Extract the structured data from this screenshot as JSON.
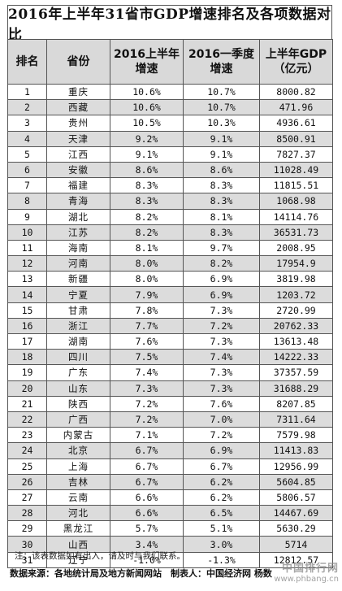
{
  "title": "2016年上半年31省市GDP增速排名及各项数据对比",
  "headers": [
    "排名",
    "省份",
    "2016上半年增速",
    "2016一季度增速",
    "上半年GDP（亿元）"
  ],
  "rows": [
    [
      "1",
      "重庆",
      "10.6%",
      "10.7%",
      "8000.82"
    ],
    [
      "2",
      "西藏",
      "10.6%",
      "10.7%",
      "471.96"
    ],
    [
      "3",
      "贵州",
      "10.5%",
      "10.3%",
      "4936.61"
    ],
    [
      "4",
      "天津",
      "9.2%",
      "9.1%",
      "8500.91"
    ],
    [
      "5",
      "江西",
      "9.1%",
      "9.1%",
      "7827.37"
    ],
    [
      "6",
      "安徽",
      "8.6%",
      "8.6%",
      "11028.49"
    ],
    [
      "7",
      "福建",
      "8.3%",
      "8.3%",
      "11815.51"
    ],
    [
      "8",
      "青海",
      "8.3%",
      "8.3%",
      "1068.98"
    ],
    [
      "9",
      "湖北",
      "8.2%",
      "8.1%",
      "14114.76"
    ],
    [
      "10",
      "江苏",
      "8.2%",
      "8.3%",
      "36531.73"
    ],
    [
      "11",
      "海南",
      "8.1%",
      "9.7%",
      "2008.95"
    ],
    [
      "12",
      "河南",
      "8.0%",
      "8.2%",
      "17954.9"
    ],
    [
      "13",
      "新疆",
      "8.0%",
      "6.9%",
      "3819.98"
    ],
    [
      "14",
      "宁夏",
      "7.9%",
      "6.9%",
      "1203.72"
    ],
    [
      "15",
      "甘肃",
      "7.8%",
      "7.3%",
      "2720.99"
    ],
    [
      "16",
      "浙江",
      "7.7%",
      "7.2%",
      "20762.33"
    ],
    [
      "17",
      "湖南",
      "7.6%",
      "7.3%",
      "13613.48"
    ],
    [
      "18",
      "四川",
      "7.5%",
      "7.4%",
      "14222.33"
    ],
    [
      "19",
      "广东",
      "7.4%",
      "7.3%",
      "37357.59"
    ],
    [
      "20",
      "山东",
      "7.3%",
      "7.3%",
      "31688.29"
    ],
    [
      "21",
      "陕西",
      "7.2%",
      "7.6%",
      "8207.85"
    ],
    [
      "22",
      "广西",
      "7.2%",
      "7.0%",
      "7311.64"
    ],
    [
      "23",
      "内蒙古",
      "7.1%",
      "7.2%",
      "7579.98"
    ],
    [
      "24",
      "北京",
      "6.7%",
      "6.9%",
      "11413.83"
    ],
    [
      "25",
      "上海",
      "6.7%",
      "6.7%",
      "12956.99"
    ],
    [
      "26",
      "吉林",
      "6.7%",
      "6.2%",
      "5604.85"
    ],
    [
      "27",
      "云南",
      "6.6%",
      "6.2%",
      "5806.57"
    ],
    [
      "28",
      "河北",
      "6.6%",
      "6.5%",
      "14467.69"
    ],
    [
      "29",
      "黑龙江",
      "5.7%",
      "5.1%",
      "5630.29"
    ],
    [
      "30",
      "山西",
      "3.4%",
      "3.0%",
      "5714"
    ],
    [
      "31",
      "辽宁",
      "-1.0%",
      "-1.3%",
      "12812.57"
    ]
  ],
  "note": "注：该表数据如有出入，请及时与我们联系。",
  "source": "数据来源：各地统计局及地方新闻网站　制表人：中国经济网 杨数",
  "watermark": {
    "cn": "中国排行网",
    "url": "www.phbang.cn"
  }
}
